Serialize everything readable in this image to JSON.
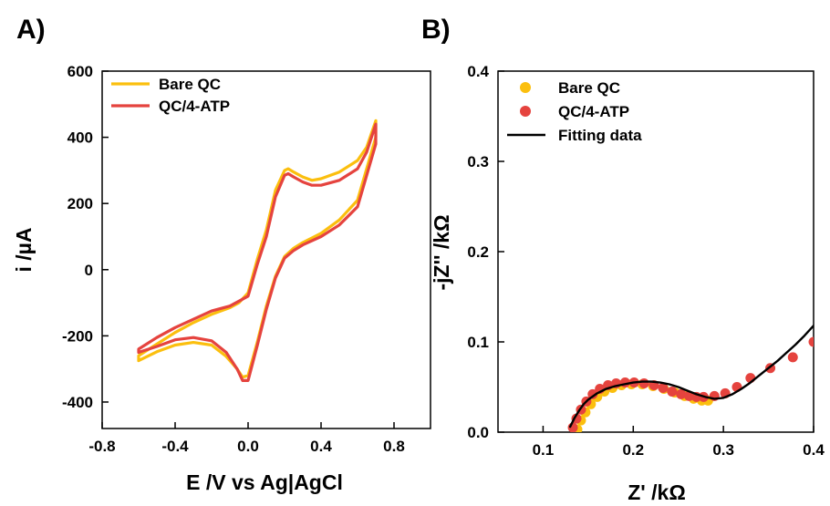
{
  "panels": {
    "a_label": "A)",
    "b_label": "B)"
  },
  "chart_data": [
    {
      "type": "line",
      "panel": "A)",
      "xlabel": "E /V vs Ag|AgCl",
      "ylabel": "i /µA",
      "xlim": [
        -0.8,
        1.0
      ],
      "ylim": [
        -480,
        600
      ],
      "xticks": [
        -0.8,
        -0.4,
        0.0,
        0.4,
        0.8
      ],
      "xtick_labels": [
        "-0.8",
        "-0.4",
        "0.0",
        "0.4",
        "0.8"
      ],
      "yticks": [
        -400,
        -200,
        0,
        200,
        400,
        600
      ],
      "ytick_labels": [
        "-400",
        "-200",
        "0",
        "200",
        "400",
        "600"
      ],
      "legend_position": "top-left",
      "series": [
        {
          "name": "Bare QC",
          "color": "#FBBF0E",
          "x": [
            -0.6,
            -0.5,
            -0.4,
            -0.3,
            -0.2,
            -0.12,
            -0.06,
            -0.03,
            0.0,
            0.05,
            0.1,
            0.15,
            0.2,
            0.25,
            0.3,
            0.4,
            0.5,
            0.6,
            0.7,
            0.7,
            0.65,
            0.6,
            0.5,
            0.4,
            0.35,
            0.3,
            0.25,
            0.22,
            0.2,
            0.15,
            0.1,
            0.05,
            0.0,
            -0.05,
            -0.1,
            -0.2,
            -0.3,
            -0.4,
            -0.5,
            -0.6
          ],
          "y": [
            -275,
            -248,
            -228,
            -220,
            -228,
            -262,
            -300,
            -325,
            -320,
            -220,
            -110,
            -20,
            40,
            65,
            82,
            110,
            150,
            210,
            400,
            450,
            370,
            330,
            295,
            275,
            270,
            280,
            295,
            305,
            300,
            240,
            120,
            30,
            -70,
            -100,
            -115,
            -135,
            -160,
            -190,
            -225,
            -260
          ]
        },
        {
          "name": "QC/4-ATP",
          "color": "#E5433E",
          "x": [
            -0.6,
            -0.5,
            -0.4,
            -0.3,
            -0.2,
            -0.12,
            -0.06,
            -0.03,
            0.0,
            0.05,
            0.1,
            0.15,
            0.2,
            0.25,
            0.3,
            0.4,
            0.5,
            0.6,
            0.7,
            0.7,
            0.65,
            0.6,
            0.5,
            0.4,
            0.35,
            0.3,
            0.25,
            0.22,
            0.2,
            0.15,
            0.1,
            0.05,
            0.0,
            -0.05,
            -0.1,
            -0.2,
            -0.3,
            -0.4,
            -0.5,
            -0.6
          ],
          "y": [
            -250,
            -232,
            -212,
            -205,
            -215,
            -250,
            -300,
            -335,
            -335,
            -230,
            -120,
            -25,
            35,
            58,
            75,
            100,
            135,
            190,
            380,
            440,
            355,
            305,
            270,
            255,
            255,
            265,
            280,
            290,
            285,
            220,
            100,
            15,
            -80,
            -95,
            -110,
            -125,
            -150,
            -175,
            -205,
            -240
          ]
        }
      ]
    },
    {
      "type": "scatter",
      "panel": "B)",
      "xlabel": "Z' /kΩ",
      "ylabel": "-jZ'' /kΩ",
      "xlim": [
        0.05,
        0.4
      ],
      "ylim": [
        0.0,
        0.4
      ],
      "xticks": [
        0.1,
        0.2,
        0.3,
        0.4
      ],
      "xtick_labels": [
        "0.1",
        "0.2",
        "0.3",
        "0.4"
      ],
      "yticks": [
        0.0,
        0.1,
        0.2,
        0.3,
        0.4
      ],
      "ytick_labels": [
        "0.0",
        "0.1",
        "0.2",
        "0.3",
        "0.4"
      ],
      "legend_position": "top-left",
      "series": [
        {
          "name": "Bare QC",
          "color": "#FBBF0E",
          "kind": "scatter",
          "x": [
            0.138,
            0.142,
            0.147,
            0.153,
            0.16,
            0.168,
            0.177,
            0.187,
            0.198,
            0.21,
            0.222,
            0.234,
            0.246,
            0.257,
            0.267,
            0.276,
            0.283
          ],
          "y": [
            0.003,
            0.013,
            0.022,
            0.031,
            0.039,
            0.045,
            0.049,
            0.052,
            0.053,
            0.053,
            0.051,
            0.048,
            0.044,
            0.04,
            0.037,
            0.035,
            0.035
          ]
        },
        {
          "name": "QC/4-ATP",
          "color": "#E5433E",
          "kind": "scatter",
          "x": [
            0.133,
            0.137,
            0.142,
            0.148,
            0.155,
            0.163,
            0.172,
            0.181,
            0.191,
            0.201,
            0.212,
            0.223,
            0.233,
            0.243,
            0.253,
            0.262,
            0.27,
            0.278,
            0.29,
            0.302,
            0.315,
            0.33,
            0.352,
            0.377,
            0.4
          ],
          "y": [
            0.005,
            0.015,
            0.025,
            0.034,
            0.042,
            0.048,
            0.052,
            0.054,
            0.055,
            0.055,
            0.054,
            0.052,
            0.049,
            0.045,
            0.042,
            0.04,
            0.039,
            0.039,
            0.04,
            0.043,
            0.05,
            0.06,
            0.071,
            0.083,
            0.1
          ]
        },
        {
          "name": "Fitting data",
          "color": "#000000",
          "kind": "line",
          "x": [
            0.13,
            0.135,
            0.14,
            0.145,
            0.15,
            0.16,
            0.17,
            0.18,
            0.19,
            0.2,
            0.21,
            0.22,
            0.23,
            0.24,
            0.25,
            0.26,
            0.27,
            0.28,
            0.29,
            0.3,
            0.31,
            0.32,
            0.33,
            0.34,
            0.35,
            0.36,
            0.37,
            0.38,
            0.39,
            0.4
          ],
          "y": [
            0.006,
            0.016,
            0.024,
            0.031,
            0.036,
            0.043,
            0.048,
            0.051,
            0.053,
            0.055,
            0.056,
            0.056,
            0.055,
            0.053,
            0.05,
            0.046,
            0.042,
            0.039,
            0.037,
            0.038,
            0.042,
            0.048,
            0.055,
            0.063,
            0.071,
            0.079,
            0.088,
            0.097,
            0.107,
            0.118
          ]
        }
      ]
    }
  ]
}
